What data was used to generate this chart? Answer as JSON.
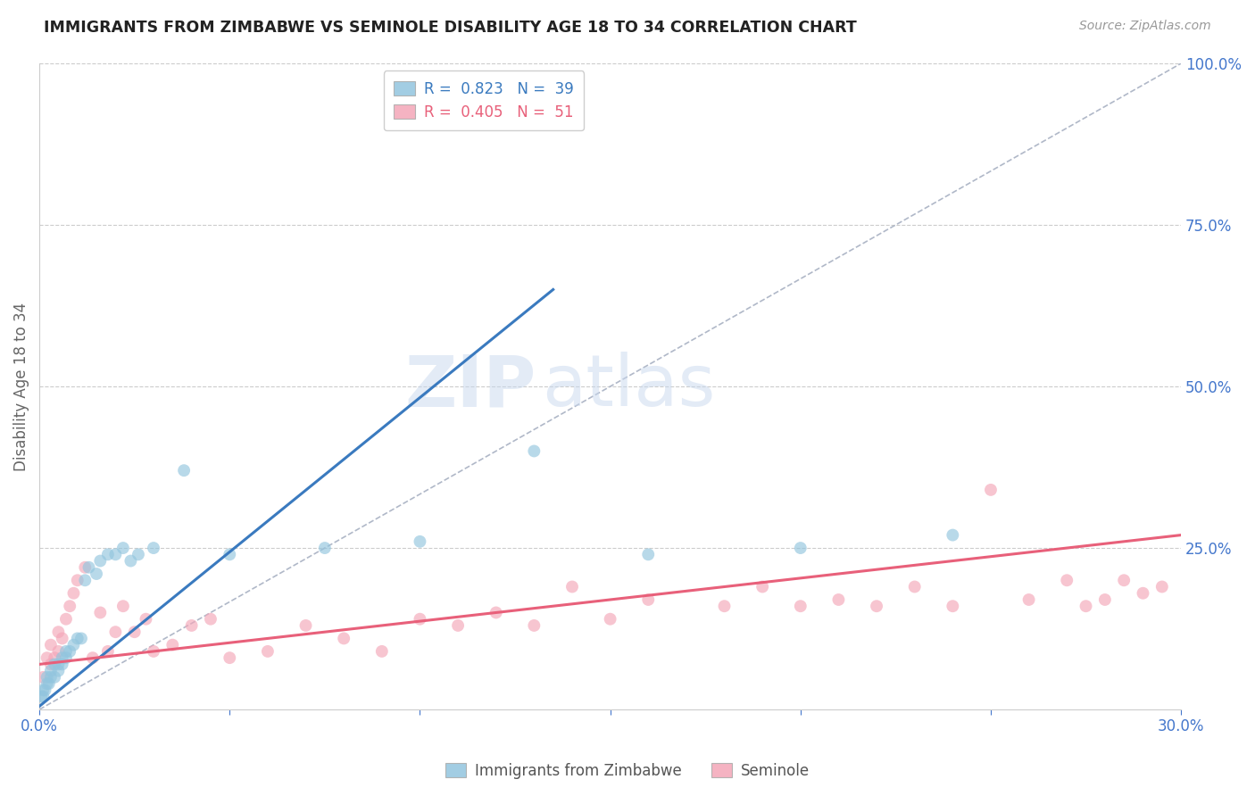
{
  "title": "IMMIGRANTS FROM ZIMBABWE VS SEMINOLE DISABILITY AGE 18 TO 34 CORRELATION CHART",
  "source": "Source: ZipAtlas.com",
  "ylabel": "Disability Age 18 to 34",
  "right_yticks": [
    0.0,
    0.25,
    0.5,
    0.75,
    1.0
  ],
  "right_yticklabels": [
    "",
    "25.0%",
    "50.0%",
    "75.0%",
    "100.0%"
  ],
  "xmin": 0.0,
  "xmax": 0.3,
  "ymin": 0.0,
  "ymax": 1.0,
  "legend1_r": "0.823",
  "legend1_n": "39",
  "legend2_r": "0.405",
  "legend2_n": "51",
  "legend1_label": "Immigrants from Zimbabwe",
  "legend2_label": "Seminole",
  "blue_color": "#92c5de",
  "pink_color": "#f4a6b8",
  "blue_line_color": "#3a7abf",
  "pink_line_color": "#e8607a",
  "watermark_zip": "ZIP",
  "watermark_atlas": "atlas",
  "blue_scatter_x": [
    0.0005,
    0.001,
    0.001,
    0.0015,
    0.002,
    0.002,
    0.0025,
    0.003,
    0.003,
    0.004,
    0.004,
    0.005,
    0.005,
    0.006,
    0.006,
    0.007,
    0.007,
    0.008,
    0.009,
    0.01,
    0.011,
    0.012,
    0.013,
    0.015,
    0.016,
    0.018,
    0.02,
    0.022,
    0.024,
    0.026,
    0.03,
    0.038,
    0.05,
    0.075,
    0.1,
    0.13,
    0.16,
    0.2,
    0.24
  ],
  "blue_scatter_y": [
    0.02,
    0.02,
    0.03,
    0.03,
    0.04,
    0.05,
    0.04,
    0.05,
    0.06,
    0.05,
    0.07,
    0.06,
    0.07,
    0.07,
    0.08,
    0.08,
    0.09,
    0.09,
    0.1,
    0.11,
    0.11,
    0.2,
    0.22,
    0.21,
    0.23,
    0.24,
    0.24,
    0.25,
    0.23,
    0.24,
    0.25,
    0.37,
    0.24,
    0.25,
    0.26,
    0.4,
    0.24,
    0.25,
    0.27
  ],
  "pink_scatter_x": [
    0.001,
    0.002,
    0.003,
    0.003,
    0.004,
    0.005,
    0.005,
    0.006,
    0.007,
    0.008,
    0.009,
    0.01,
    0.012,
    0.014,
    0.016,
    0.018,
    0.02,
    0.022,
    0.025,
    0.028,
    0.03,
    0.035,
    0.04,
    0.045,
    0.05,
    0.06,
    0.07,
    0.08,
    0.09,
    0.1,
    0.11,
    0.12,
    0.13,
    0.14,
    0.15,
    0.16,
    0.18,
    0.19,
    0.2,
    0.21,
    0.22,
    0.23,
    0.24,
    0.25,
    0.26,
    0.27,
    0.275,
    0.28,
    0.285,
    0.29,
    0.295
  ],
  "pink_scatter_y": [
    0.05,
    0.08,
    0.07,
    0.1,
    0.08,
    0.09,
    0.12,
    0.11,
    0.14,
    0.16,
    0.18,
    0.2,
    0.22,
    0.08,
    0.15,
    0.09,
    0.12,
    0.16,
    0.12,
    0.14,
    0.09,
    0.1,
    0.13,
    0.14,
    0.08,
    0.09,
    0.13,
    0.11,
    0.09,
    0.14,
    0.13,
    0.15,
    0.13,
    0.19,
    0.14,
    0.17,
    0.16,
    0.19,
    0.16,
    0.17,
    0.16,
    0.19,
    0.16,
    0.34,
    0.17,
    0.2,
    0.16,
    0.17,
    0.2,
    0.18,
    0.19
  ],
  "blue_line_x": [
    0.0,
    0.135
  ],
  "blue_line_y": [
    0.005,
    0.65
  ],
  "pink_line_x": [
    0.0,
    0.3
  ],
  "pink_line_y": [
    0.07,
    0.27
  ],
  "diag_line_x": [
    0.0,
    0.3
  ],
  "diag_line_y": [
    0.0,
    1.0
  ]
}
